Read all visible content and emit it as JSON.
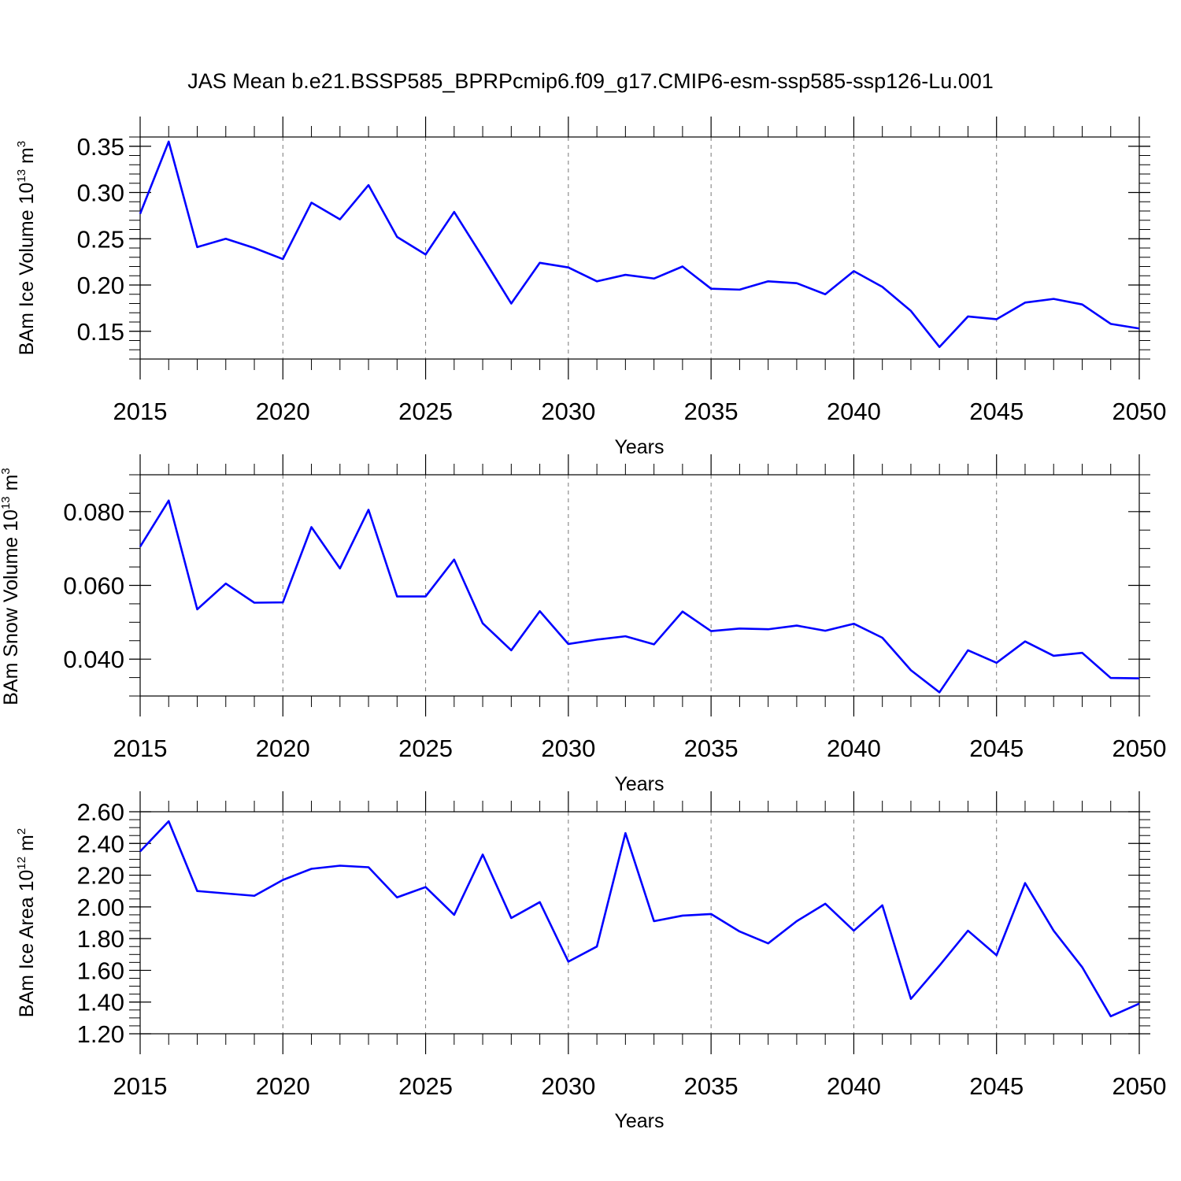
{
  "figure_title": "JAS Mean b.e21.BSSP585_BPRPcmip6.f09_g17.CMIP6-esm-ssp585-ssp126-Lu.001",
  "colors": {
    "series": "#0000ff",
    "axis": "#000000",
    "grid": "#777777"
  },
  "chart_data": [
    {
      "type": "line",
      "title": "",
      "xlabel": "Years",
      "ylabel": "BAm Ice Volume 10",
      "ylabel_exp": "13",
      "ylabel_unit": " m",
      "ylabel_unit_exp": "3",
      "xlim": [
        2015,
        2050
      ],
      "ylim": [
        0.12,
        0.36
      ],
      "yticks": [
        0.15,
        0.2,
        0.25,
        0.3,
        0.35
      ],
      "ytick_labels": [
        "0.15",
        "0.20",
        "0.25",
        "0.30",
        "0.35"
      ],
      "ytick_minor_step": 0.01,
      "xticks": [
        2015,
        2020,
        2025,
        2030,
        2035,
        2040,
        2045,
        2050
      ],
      "xtick_labels": [
        "2015",
        "2020",
        "2025",
        "2030",
        "2035",
        "2040",
        "2045",
        "2050"
      ],
      "grid": "vertical dashed at major x ticks",
      "x": [
        2015,
        2016,
        2017,
        2018,
        2019,
        2020,
        2021,
        2022,
        2023,
        2024,
        2025,
        2026,
        2027,
        2028,
        2029,
        2030,
        2031,
        2032,
        2033,
        2034,
        2035,
        2036,
        2037,
        2038,
        2039,
        2040,
        2041,
        2042,
        2043,
        2044,
        2045,
        2046,
        2047,
        2048,
        2049,
        2050
      ],
      "series": [
        {
          "name": "BAm Ice Volume",
          "values": [
            0.277,
            0.355,
            0.241,
            0.25,
            0.24,
            0.228,
            0.289,
            0.271,
            0.308,
            0.252,
            0.233,
            0.279,
            0.23,
            0.18,
            0.224,
            0.219,
            0.204,
            0.211,
            0.207,
            0.22,
            0.196,
            0.195,
            0.204,
            0.202,
            0.19,
            0.215,
            0.198,
            0.172,
            0.133,
            0.166,
            0.163,
            0.181,
            0.185,
            0.179,
            0.158,
            0.153
          ]
        }
      ]
    },
    {
      "type": "line",
      "title": "",
      "xlabel": "Years",
      "ylabel": "BAm Snow Volume 10",
      "ylabel_exp": "13",
      "ylabel_unit": " m",
      "ylabel_unit_exp": "3",
      "xlim": [
        2015,
        2050
      ],
      "ylim": [
        0.03,
        0.09
      ],
      "yticks": [
        0.04,
        0.06,
        0.08
      ],
      "ytick_labels": [
        "0.040",
        "0.060",
        "0.080"
      ],
      "ytick_minor_step": 0.005,
      "xticks": [
        2015,
        2020,
        2025,
        2030,
        2035,
        2040,
        2045,
        2050
      ],
      "xtick_labels": [
        "2015",
        "2020",
        "2025",
        "2030",
        "2035",
        "2040",
        "2045",
        "2050"
      ],
      "grid": "vertical dashed at major x ticks",
      "x": [
        2015,
        2016,
        2017,
        2018,
        2019,
        2020,
        2021,
        2022,
        2023,
        2024,
        2025,
        2026,
        2027,
        2028,
        2029,
        2030,
        2031,
        2032,
        2033,
        2034,
        2035,
        2036,
        2037,
        2038,
        2039,
        2040,
        2041,
        2042,
        2043,
        2044,
        2045,
        2046,
        2047,
        2048,
        2049,
        2050
      ],
      "series": [
        {
          "name": "BAm Snow Volume",
          "values": [
            0.0705,
            0.083,
            0.0535,
            0.0605,
            0.0553,
            0.0554,
            0.0758,
            0.0646,
            0.0805,
            0.057,
            0.057,
            0.067,
            0.0497,
            0.0424,
            0.053,
            0.0441,
            0.0453,
            0.0462,
            0.044,
            0.0529,
            0.0476,
            0.0483,
            0.0481,
            0.0491,
            0.0477,
            0.0496,
            0.0458,
            0.037,
            0.031,
            0.0424,
            0.039,
            0.0448,
            0.0409,
            0.0417,
            0.0349,
            0.0348
          ]
        }
      ]
    },
    {
      "type": "line",
      "title": "",
      "xlabel": "Years",
      "ylabel": "BAm Ice Area 10",
      "ylabel_exp": "12",
      "ylabel_unit": " m",
      "ylabel_unit_exp": "2",
      "xlim": [
        2015,
        2050
      ],
      "ylim": [
        1.2,
        2.6
      ],
      "yticks": [
        1.2,
        1.4,
        1.6,
        1.8,
        2.0,
        2.2,
        2.4,
        2.6
      ],
      "ytick_labels": [
        "1.20",
        "1.40",
        "1.60",
        "1.80",
        "2.00",
        "2.20",
        "2.40",
        "2.60"
      ],
      "ytick_minor_step": 0.05,
      "xticks": [
        2015,
        2020,
        2025,
        2030,
        2035,
        2040,
        2045,
        2050
      ],
      "xtick_labels": [
        "2015",
        "2020",
        "2025",
        "2030",
        "2035",
        "2040",
        "2045",
        "2050"
      ],
      "grid": "vertical dashed at major x ticks",
      "x": [
        2015,
        2016,
        2017,
        2018,
        2019,
        2020,
        2021,
        2022,
        2023,
        2024,
        2025,
        2026,
        2027,
        2028,
        2029,
        2030,
        2031,
        2032,
        2033,
        2034,
        2035,
        2036,
        2037,
        2038,
        2039,
        2040,
        2041,
        2042,
        2043,
        2044,
        2045,
        2046,
        2047,
        2048,
        2049,
        2050
      ],
      "series": [
        {
          "name": "BAm Ice Area",
          "values": [
            2.35,
            2.54,
            2.1,
            2.085,
            2.07,
            2.17,
            2.24,
            2.26,
            2.25,
            2.06,
            2.125,
            1.95,
            2.33,
            1.93,
            2.03,
            1.655,
            1.75,
            2.465,
            1.91,
            1.945,
            1.955,
            1.845,
            1.77,
            1.91,
            2.02,
            1.85,
            2.01,
            1.42,
            1.63,
            1.85,
            1.695,
            2.15,
            1.85,
            1.62,
            1.31,
            1.39
          ]
        }
      ]
    }
  ]
}
